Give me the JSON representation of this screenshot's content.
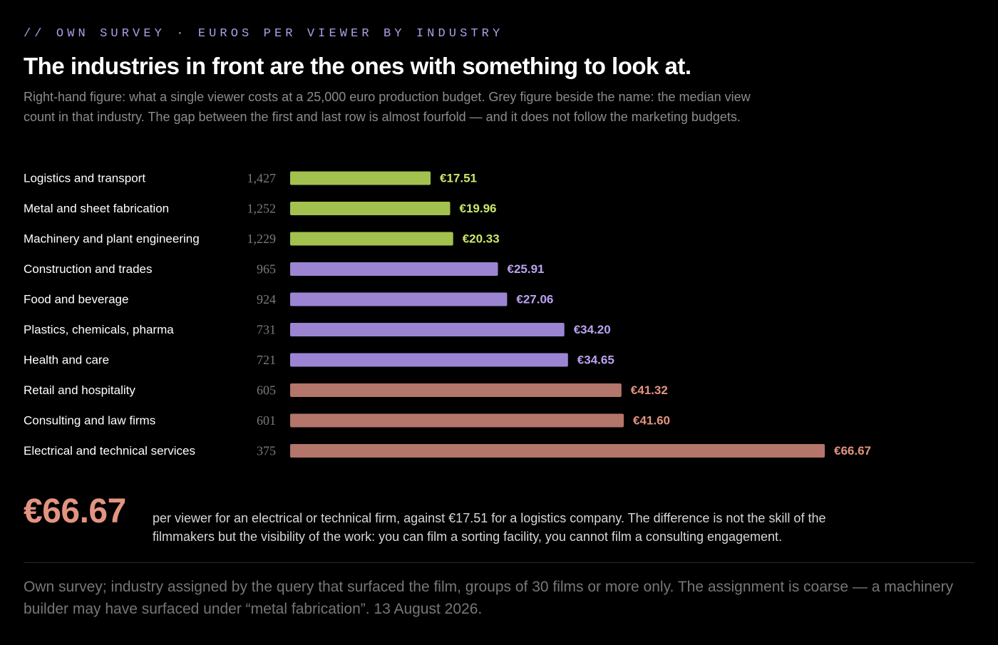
{
  "kicker": "// OWN SURVEY · EUROS PER VIEWER BY INDUSTRY",
  "title": "The industries in front are the ones with something to look at.",
  "intro": "Right-hand figure: what a single viewer costs at a 25,000 euro production budget. Grey figure beside the name: the median view count in that industry. The gap between the first and last row is almost fourfold — and it does not follow the marketing budgets.",
  "colors": {
    "green": "#a3c14e",
    "green_text": "#cbe86a",
    "purple": "#9b85d2",
    "purple_text": "#b9a3f0",
    "salmon": "#b4756a",
    "salmon_text": "#e29480"
  },
  "chart_data": {
    "type": "bar",
    "orientation": "horizontal",
    "categories": [
      "Logistics and transport",
      "Metal and sheet fabrication",
      "Machinery and plant engineering",
      "Construction and trades",
      "Food and beverage",
      "Plastics, chemicals, pharma",
      "Health and care",
      "Retail and hospitality",
      "Consulting and law firms",
      "Electrical and technical services"
    ],
    "median_views": [
      "1,427",
      "1,252",
      "1,229",
      "965",
      "924",
      "731",
      "721",
      "605",
      "601",
      "375"
    ],
    "values": [
      17.51,
      19.96,
      20.33,
      25.91,
      27.06,
      34.2,
      34.65,
      41.32,
      41.6,
      66.67
    ],
    "value_labels": [
      "€17.51",
      "€19.96",
      "€20.33",
      "€25.91",
      "€27.06",
      "€34.20",
      "€34.65",
      "€41.32",
      "€41.60",
      "€66.67"
    ],
    "groups": [
      "green",
      "green",
      "green",
      "purple",
      "purple",
      "purple",
      "purple",
      "salmon",
      "salmon",
      "salmon"
    ],
    "xlim": [
      0,
      66.67
    ],
    "grid": false,
    "legend": "none"
  },
  "callout": {
    "value": "€66.67",
    "text": "per viewer for an electrical or technical firm, against €17.51 for a logistics company. The difference is not the skill of the filmmakers but the visibility of the work: you can film a sorting facility, you cannot film a consulting engagement."
  },
  "footnote": "Own survey; industry assigned by the query that surfaced the film, groups of 30 films or more only. The assignment is coarse — a machinery builder may have surfaced under “metal fabrication”. 13 August 2026."
}
